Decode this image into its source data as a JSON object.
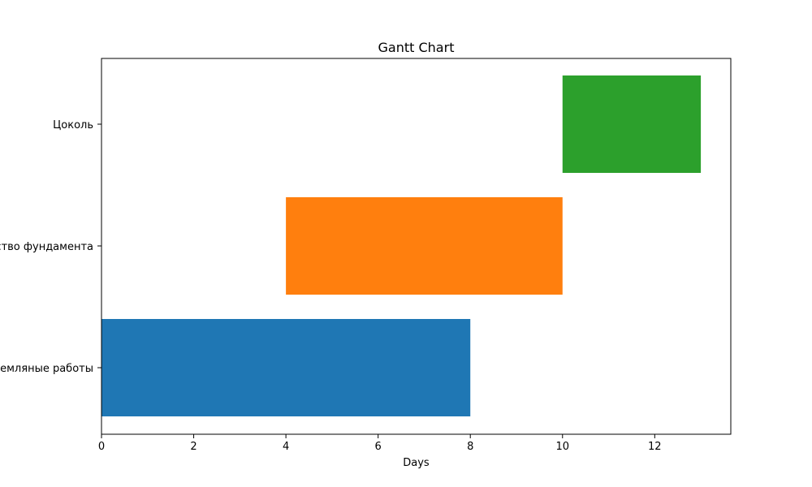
{
  "chart_data": {
    "type": "bar",
    "orientation": "horizontal",
    "title": "Gantt Chart",
    "xlabel": "Days",
    "ylabel": "",
    "xlim": [
      0,
      13.65
    ],
    "xticks": [
      "0",
      "2",
      "4",
      "6",
      "8",
      "10",
      "12"
    ],
    "grid": false,
    "tasks": [
      {
        "label": "Земляные работы",
        "start": 0,
        "duration": 8,
        "color": "#1f77b4"
      },
      {
        "label": "Устройство фундамента",
        "start": 4,
        "duration": 6,
        "color": "#ff7f0e"
      },
      {
        "label": "Цоколь",
        "start": 10,
        "duration": 3,
        "color": "#2ca02c"
      }
    ]
  }
}
